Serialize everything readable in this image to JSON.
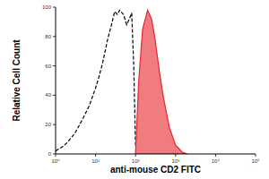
{
  "chart_data": {
    "type": "area",
    "x_label": "anti-mouse CD2 FITC",
    "y_label": "Relative Cell Count",
    "log": "x",
    "xlim": [
      1,
      100000
    ],
    "xticks": [
      {
        "value": 1,
        "label": "10⁰"
      },
      {
        "value": 10,
        "label": "10¹"
      },
      {
        "value": 100,
        "label": "10²"
      },
      {
        "value": 1000,
        "label": "10³"
      },
      {
        "value": 10000,
        "label": "10⁴"
      },
      {
        "value": 100000,
        "label": "10⁵"
      }
    ],
    "ylim": [
      0,
      100
    ],
    "yticks": [
      0,
      20,
      40,
      60,
      80,
      100
    ],
    "x": [
      1,
      1.5,
      2,
      3,
      4,
      5,
      7,
      10,
      12,
      15,
      20,
      25,
      30,
      35,
      40,
      50,
      60,
      70,
      80,
      90,
      100,
      120,
      150,
      200,
      250,
      300,
      400,
      500,
      700,
      1000,
      1500,
      2000
    ],
    "series": [
      {
        "type": "line",
        "color": "#000000",
        "line_style": "dashed",
        "values": [
          2,
          5,
          8,
          14,
          20,
          25,
          33,
          45,
          52,
          62,
          78,
          88,
          97,
          95,
          98,
          95,
          88,
          92,
          96,
          60,
          5,
          null,
          null,
          null,
          null,
          null,
          null,
          null,
          null,
          null,
          null,
          null
        ]
      },
      {
        "type": "area",
        "color": "#e8242c",
        "values": [
          null,
          null,
          null,
          null,
          null,
          null,
          null,
          null,
          null,
          null,
          null,
          null,
          null,
          null,
          null,
          null,
          null,
          null,
          null,
          null,
          2,
          50,
          85,
          98,
          92,
          80,
          55,
          38,
          18,
          6,
          1,
          0
        ]
      }
    ]
  }
}
